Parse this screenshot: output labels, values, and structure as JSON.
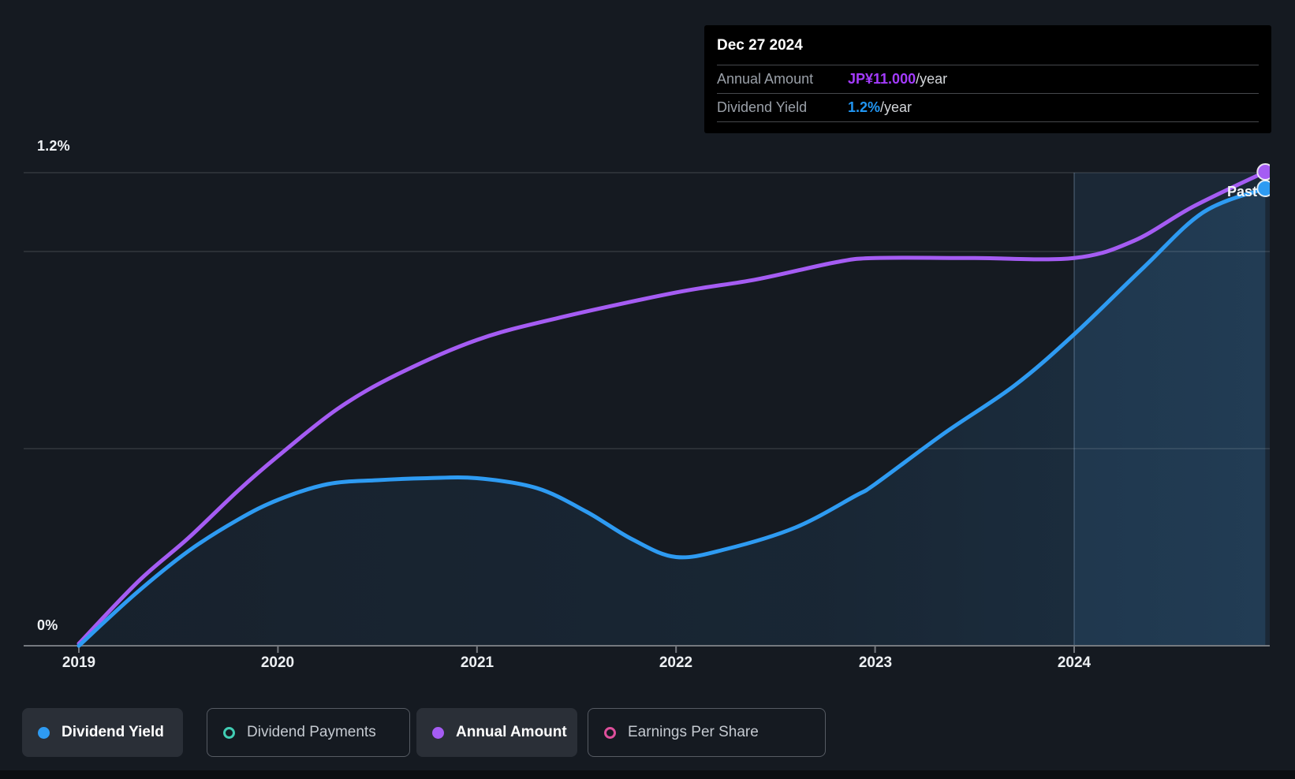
{
  "colors": {
    "background": "#151a21",
    "blue": "#2e9bf2",
    "purple": "#a55cf3",
    "teal": "#41cdb4",
    "pink": "#de4f9b",
    "tooltip_bg": "#000000",
    "tooltip_purple": "#a43bff",
    "tooltip_blue": "#2196f3",
    "gridline": "rgba(255,255,255,0.13)",
    "axis_line": "#75797f",
    "highlight_fill": "rgba(74,144,205,0.12)"
  },
  "tooltip": {
    "date": "Dec 27 2024",
    "rows": [
      {
        "label": "Annual Amount",
        "value": "JP¥11.000",
        "suffix": "/year",
        "color": "purple"
      },
      {
        "label": "Dividend Yield",
        "value": "1.2%",
        "suffix": "/year",
        "color": "blue"
      }
    ]
  },
  "chart_data": {
    "type": "line",
    "x_axis": {
      "ticks": [
        "2019",
        "2020",
        "2021",
        "2022",
        "2023",
        "2024"
      ],
      "range_years": [
        2019,
        2024.98
      ]
    },
    "y_axis": {
      "top_label": "1.2%",
      "zero_label": "0%",
      "unit": "%",
      "range_pct": [
        0,
        1.2
      ],
      "gridline_values_pct": [
        1.2,
        1.0,
        0.5,
        0
      ]
    },
    "grid": true,
    "highlight_region": {
      "from_year": 2024.0,
      "label": "Past"
    },
    "amount_scale": {
      "max_value": 11,
      "maps_to_pct": 1.202
    },
    "series": [
      {
        "name": "Annual Amount",
        "axis": "amount",
        "unit": "JPY/year",
        "color": "#a55cf3",
        "end_marker": true,
        "points": [
          [
            2019.0,
            0.05
          ],
          [
            2019.3,
            1.5
          ],
          [
            2019.55,
            2.5
          ],
          [
            2019.8,
            3.6
          ],
          [
            2020.0,
            4.4
          ],
          [
            2020.3,
            5.5
          ],
          [
            2020.6,
            6.3
          ],
          [
            2021.0,
            7.1
          ],
          [
            2021.4,
            7.6
          ],
          [
            2022.0,
            8.2
          ],
          [
            2022.4,
            8.5
          ],
          [
            2022.8,
            8.9
          ],
          [
            2023.0,
            9.0
          ],
          [
            2023.5,
            9.0
          ],
          [
            2024.0,
            9.0
          ],
          [
            2024.3,
            9.4
          ],
          [
            2024.6,
            10.2
          ],
          [
            2024.96,
            11.0
          ]
        ]
      },
      {
        "name": "Dividend Yield",
        "axis": "yield",
        "unit": "%/year",
        "color": "#2e9bf2",
        "area_fill": true,
        "end_marker": true,
        "points": [
          [
            2019.0,
            0.0
          ],
          [
            2019.28,
            0.13
          ],
          [
            2019.55,
            0.24
          ],
          [
            2019.8,
            0.32
          ],
          [
            2020.0,
            0.37
          ],
          [
            2020.25,
            0.41
          ],
          [
            2020.5,
            0.42
          ],
          [
            2020.75,
            0.425
          ],
          [
            2021.0,
            0.425
          ],
          [
            2021.3,
            0.4
          ],
          [
            2021.55,
            0.34
          ],
          [
            2021.78,
            0.27
          ],
          [
            2022.0,
            0.225
          ],
          [
            2022.25,
            0.245
          ],
          [
            2022.6,
            0.3
          ],
          [
            2022.9,
            0.38
          ],
          [
            2023.0,
            0.41
          ],
          [
            2023.35,
            0.54
          ],
          [
            2023.7,
            0.66
          ],
          [
            2024.0,
            0.79
          ],
          [
            2024.35,
            0.96
          ],
          [
            2024.65,
            1.1
          ],
          [
            2024.96,
            1.16
          ]
        ]
      }
    ]
  },
  "legend": [
    {
      "label": "Dividend Yield",
      "marker": "dot",
      "color": "#2e9bf2",
      "active": true
    },
    {
      "label": "Dividend Payments",
      "marker": "ring",
      "color": "#41cdb4",
      "active": false
    },
    {
      "label": "Annual Amount",
      "marker": "dot",
      "color": "#a55cf3",
      "active": true
    },
    {
      "label": "Earnings Per Share",
      "marker": "ring",
      "color": "#de4f9b",
      "active": false
    }
  ]
}
